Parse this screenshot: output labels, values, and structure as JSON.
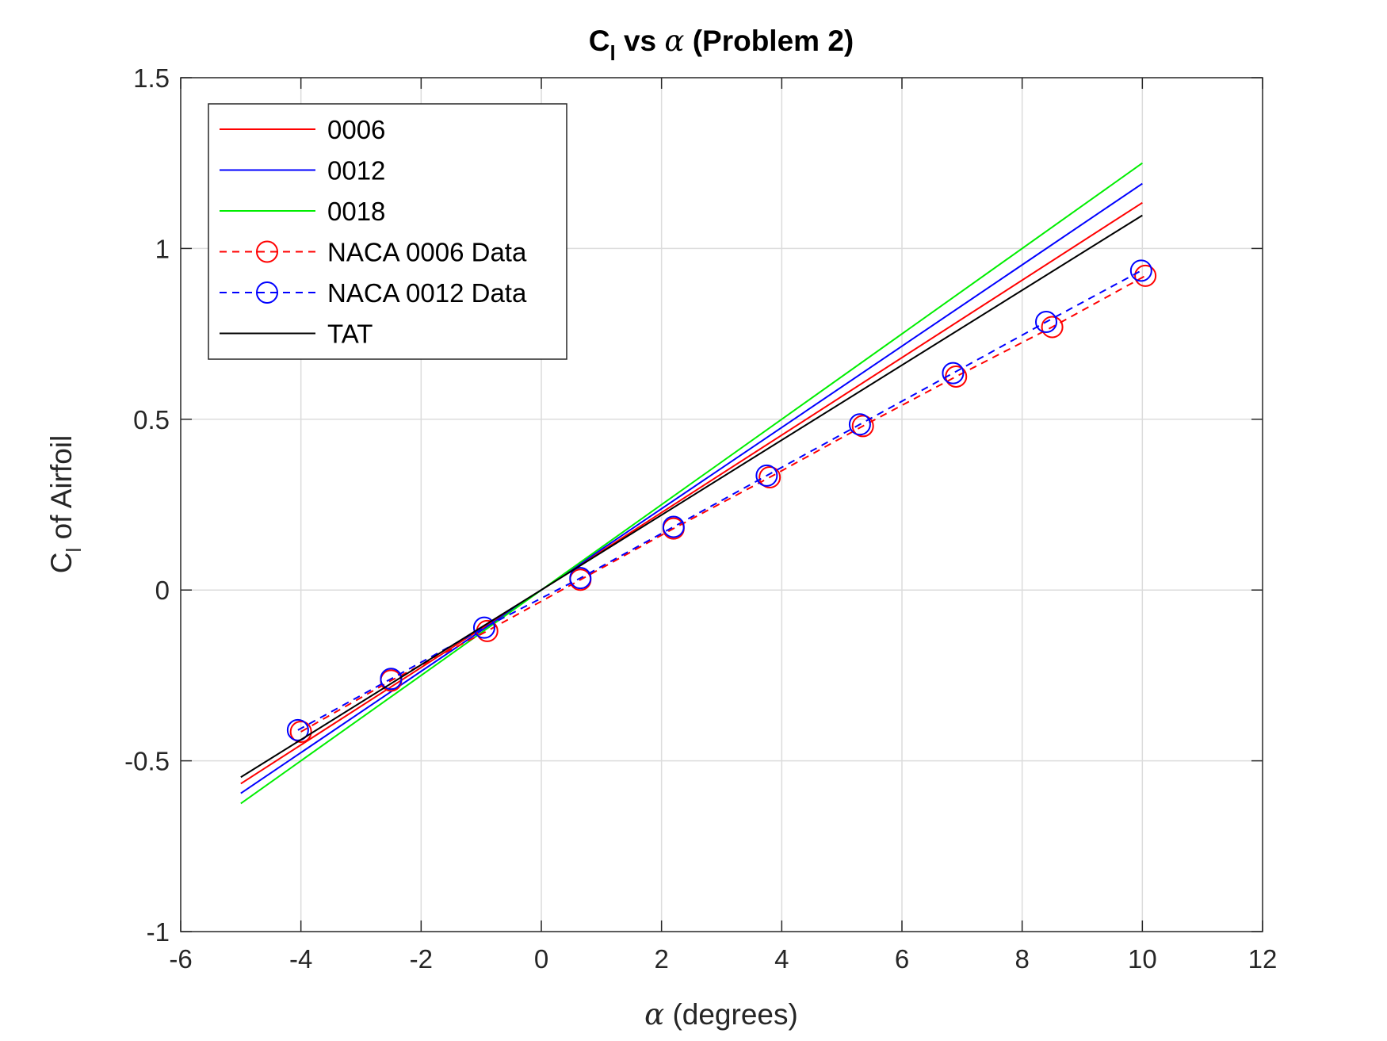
{
  "chart_data": {
    "type": "line",
    "title_main": "C",
    "title_sub": "l",
    "title_mid": " vs ",
    "title_greek": "α",
    "title_end": " (Problem 2)",
    "xlabel_greek": "α",
    "xlabel_text": " (degrees)",
    "ylabel_main": "C",
    "ylabel_sub": "l",
    "ylabel_text": " of Airfoil",
    "xlim": [
      -6,
      12
    ],
    "ylim": [
      -1,
      1.5
    ],
    "xticks": [
      -6,
      -4,
      -2,
      0,
      2,
      4,
      6,
      8,
      10,
      12
    ],
    "yticks": [
      -1,
      -0.5,
      0,
      0.5,
      1,
      1.5
    ],
    "xtick_labels": [
      "-6",
      "-4",
      "-2",
      "0",
      "2",
      "4",
      "6",
      "8",
      "10",
      "12"
    ],
    "ytick_labels": [
      "-1",
      "-0.5",
      "0",
      "0.5",
      "1",
      "1.5"
    ],
    "grid": true,
    "legend_position": "top-left",
    "series": [
      {
        "name": "0006",
        "color": "#ff0000",
        "style": "solid",
        "marker": "none",
        "x": [
          -5,
          10
        ],
        "y": [
          -0.567,
          1.134
        ]
      },
      {
        "name": "0012",
        "color": "#0000ff",
        "style": "solid",
        "marker": "none",
        "x": [
          -5,
          10
        ],
        "y": [
          -0.595,
          1.19
        ]
      },
      {
        "name": "0018",
        "color": "#00ee00",
        "style": "solid",
        "marker": "none",
        "x": [
          -5,
          10
        ],
        "y": [
          -0.625,
          1.25
        ]
      },
      {
        "name": "NACA 0006 Data",
        "color": "#ff0000",
        "style": "dashed",
        "marker": "circle",
        "x": [
          -4.0,
          -2.5,
          -0.9,
          0.65,
          2.2,
          3.8,
          5.35,
          6.9,
          8.5,
          10.05
        ],
        "y": [
          -0.415,
          -0.265,
          -0.12,
          0.03,
          0.18,
          0.33,
          0.48,
          0.625,
          0.77,
          0.92
        ]
      },
      {
        "name": "NACA 0012 Data",
        "color": "#0000ff",
        "style": "dashed",
        "marker": "circle",
        "x": [
          -4.05,
          -2.5,
          -0.95,
          0.65,
          2.2,
          3.75,
          5.3,
          6.85,
          8.4,
          9.98
        ],
        "y": [
          -0.41,
          -0.26,
          -0.11,
          0.035,
          0.185,
          0.335,
          0.485,
          0.635,
          0.785,
          0.935
        ]
      },
      {
        "name": "TAT",
        "color": "#000000",
        "style": "solid",
        "marker": "none",
        "x": [
          -5,
          10
        ],
        "y": [
          -0.548,
          1.097
        ]
      }
    ]
  }
}
